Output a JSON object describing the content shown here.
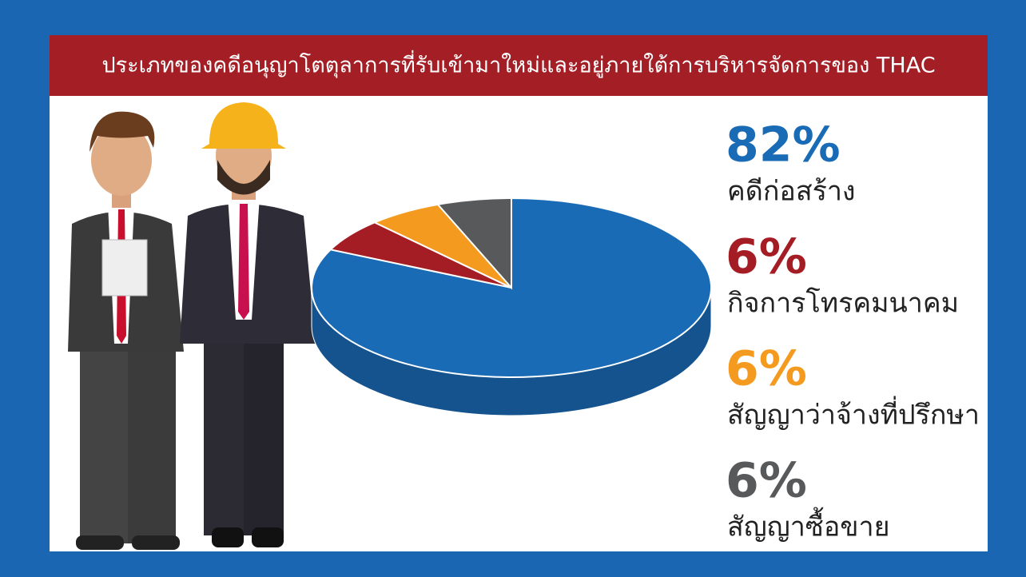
{
  "chart_data": {
    "type": "pie",
    "title": "ประเภทของคดีอนุญาโตตุลาการที่รับเข้ามาใหม่และอยู่ภายใต้การบริหารจัดการของ THAC",
    "categories": [
      "คดีก่อสร้าง",
      "กิจการโทรคมนาคม",
      "สัญญาว่าจ้างที่ปรึกษา",
      "สัญญาซื้อขาย"
    ],
    "values": [
      82,
      6,
      6,
      6
    ],
    "value_labels": [
      "82%",
      "6%",
      "6%",
      "6%"
    ],
    "colors": [
      "#1a6bb5",
      "#a51d24",
      "#f39a1f",
      "#58595b"
    ]
  }
}
